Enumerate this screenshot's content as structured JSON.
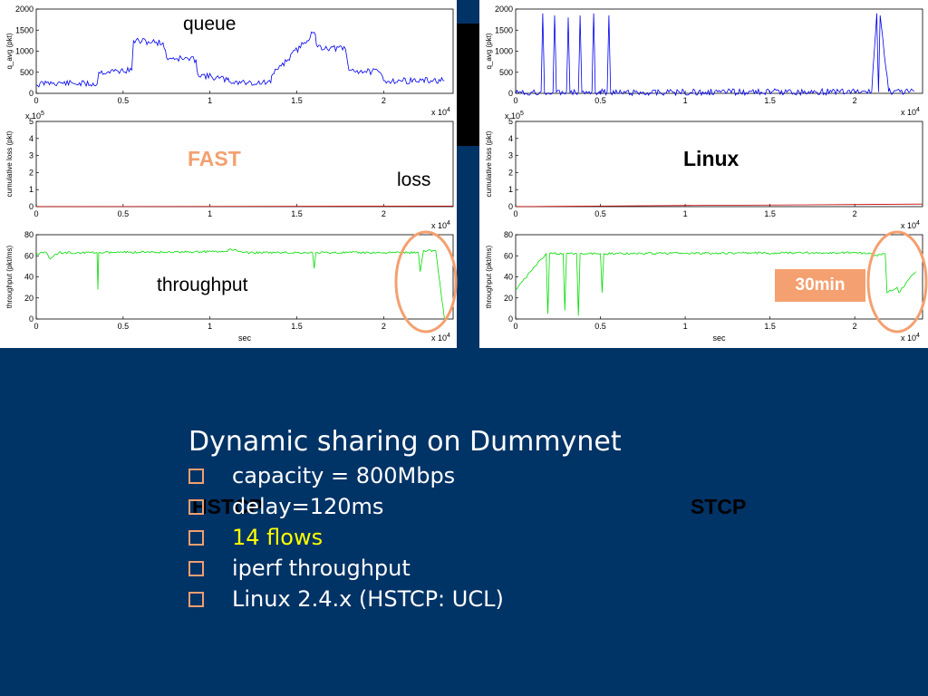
{
  "colors": {
    "background": "#003366",
    "queue": "#0000ee",
    "loss": "#cc0000",
    "throughput": "#00dd00",
    "highlight": "#f4a070",
    "flows": "#ffff00"
  },
  "annotations": {
    "queue": "queue",
    "loss": "loss",
    "throughput": "throughput",
    "fast": "FAST",
    "linux": "Linux",
    "min30": "30min",
    "hstcp": "HSTCP",
    "stcp": "STCP"
  },
  "slide": {
    "title": "Dynamic sharing on Dummynet",
    "bullets": [
      {
        "text": "capacity = 800Mbps",
        "highlight": false
      },
      {
        "text": "delay=120ms",
        "highlight": false
      },
      {
        "text": "14 flows",
        "highlight": true
      },
      {
        "text": "iperf throughput",
        "highlight": false
      },
      {
        "text": "Linux 2.4.x (HSTCP: UCL)",
        "highlight": false
      }
    ]
  },
  "chart_data": [
    {
      "type": "line",
      "panel": "left",
      "row": "queue",
      "ylabel": "q_avg (pkt)",
      "xlim": [
        0,
        24000
      ],
      "ylim": [
        0,
        2000
      ],
      "yticks": [
        "0",
        "500",
        "1000",
        "1500",
        "2000"
      ],
      "xticks": [
        "0",
        "0.5",
        "1",
        "1.5",
        "2"
      ],
      "xexp": "x 10^4",
      "series": [
        {
          "x": [
            0,
            600,
            1000,
            3500,
            3600,
            5500,
            5600,
            7300,
            7500,
            9200,
            9300,
            11000,
            11100,
            12000,
            12200,
            13500,
            13600,
            14000,
            14100,
            16000,
            16200,
            17800,
            18000,
            19800,
            20000,
            23500
          ],
          "y": [
            200,
            250,
            250,
            220,
            500,
            550,
            1250,
            1200,
            850,
            800,
            450,
            320,
            280,
            260,
            250,
            250,
            450,
            650,
            650,
            1450,
            1100,
            1050,
            550,
            500,
            300,
            300
          ]
        }
      ]
    },
    {
      "type": "line",
      "panel": "left",
      "row": "loss",
      "ylabel": "cumulative loss (pkt)",
      "xlim": [
        0,
        24000
      ],
      "ylim": [
        0,
        500000
      ],
      "yticks": [
        "0",
        "1",
        "2",
        "3",
        "4",
        "5"
      ],
      "yexp": "x 10^5",
      "xticks": [
        "0",
        "0.5",
        "1",
        "1.5",
        "2"
      ],
      "xexp": "x 10^4",
      "series": [
        {
          "x": [
            0,
            24000
          ],
          "y": [
            0,
            3000
          ]
        }
      ]
    },
    {
      "type": "line",
      "panel": "left",
      "row": "throughput",
      "ylabel": "throughput (pkt/ms)",
      "xlabel": "sec",
      "xlim": [
        0,
        24000
      ],
      "ylim": [
        0,
        80
      ],
      "yticks": [
        "0",
        "20",
        "40",
        "60",
        "80"
      ],
      "xticks": [
        "0",
        "0.5",
        "1",
        "1.5",
        "2"
      ],
      "xexp": "x 10^4",
      "series": [
        {
          "x": [
            0,
            600,
            800,
            1300,
            1600,
            3500,
            3550,
            3600,
            11000,
            11100,
            11800,
            12000,
            15900,
            16000,
            16100,
            22000,
            22100,
            22300,
            23000,
            23500
          ],
          "y": [
            62,
            63,
            57,
            63,
            63,
            63,
            28,
            63,
            64,
            66,
            64,
            63,
            63,
            48,
            63,
            63,
            45,
            65,
            65,
            0
          ]
        }
      ]
    },
    {
      "type": "line",
      "panel": "right",
      "row": "queue",
      "ylabel": "q_avg (pkt)",
      "xlim": [
        0,
        24000
      ],
      "ylim": [
        0,
        2000
      ],
      "yticks": [
        "0",
        "500",
        "1000",
        "1500",
        "2000"
      ],
      "xticks": [
        "0",
        "0.5",
        "1",
        "1.5",
        "2"
      ],
      "xexp": "x 10^4",
      "series": [
        {
          "x": [
            0,
            1000,
            1500,
            1600,
            1700,
            2200,
            2300,
            2400,
            3000,
            3100,
            3200,
            3700,
            3800,
            3900,
            4500,
            4600,
            4700,
            5400,
            5500,
            5600,
            20000,
            21000,
            21300,
            21400,
            21500,
            22000,
            22100,
            23500
          ],
          "y": [
            0,
            30,
            40,
            1900,
            20,
            30,
            1850,
            30,
            40,
            1800,
            20,
            30,
            1850,
            30,
            40,
            1900,
            20,
            40,
            1850,
            20,
            40,
            40,
            1900,
            30,
            1850,
            40,
            40,
            40
          ]
        }
      ]
    },
    {
      "type": "line",
      "panel": "right",
      "row": "loss",
      "ylabel": "cumulative loss (pkt)",
      "xlim": [
        0,
        24000
      ],
      "ylim": [
        0,
        500000
      ],
      "yticks": [
        "0",
        "1",
        "2",
        "3",
        "4",
        "5"
      ],
      "yexp": "x 10^5",
      "xticks": [
        "0",
        "0.5",
        "1",
        "1.5",
        "2"
      ],
      "xexp": "x 10^4",
      "series": [
        {
          "x": [
            0,
            5000,
            12000,
            20000,
            24000
          ],
          "y": [
            0,
            3000,
            8000,
            12000,
            15000
          ]
        }
      ]
    },
    {
      "type": "line",
      "panel": "right",
      "row": "throughput",
      "ylabel": "throughput (pkt/ms)",
      "xlabel": "sec",
      "xlim": [
        0,
        24000
      ],
      "ylim": [
        0,
        80
      ],
      "yticks": [
        "0",
        "20",
        "40",
        "60",
        "80"
      ],
      "xticks": [
        "0",
        "0.5",
        "1",
        "1.5",
        "2"
      ],
      "xexp": "x 10^4",
      "series": [
        {
          "x": [
            0,
            1800,
            1900,
            2000,
            2800,
            2900,
            3000,
            3600,
            3700,
            3800,
            5000,
            5100,
            5200,
            20000,
            21000,
            21100,
            21800,
            21900,
            22500,
            22600,
            23600
          ],
          "y": [
            28,
            62,
            5,
            62,
            62,
            8,
            62,
            62,
            3,
            62,
            62,
            25,
            62,
            63,
            62,
            60,
            62,
            25,
            30,
            25,
            45
          ]
        }
      ]
    }
  ]
}
